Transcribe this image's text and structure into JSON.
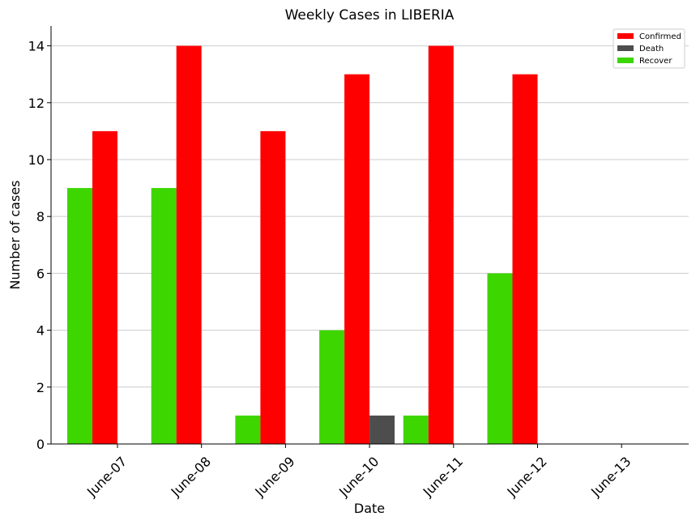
{
  "chart_data": {
    "type": "bar",
    "title": "Weekly Cases in LIBERIA",
    "xlabel": "Date",
    "ylabel": "Number of cases",
    "categories": [
      "June-07",
      "June-08",
      "June-09",
      "June-10",
      "June-11",
      "June-12",
      "June-13"
    ],
    "series": [
      {
        "name": "Recover",
        "color": "#3dd600",
        "values": [
          9,
          9,
          1,
          4,
          1,
          6,
          0
        ]
      },
      {
        "name": "Confirmed",
        "color": "#ff0000",
        "values": [
          11,
          14,
          11,
          13,
          14,
          13,
          0
        ]
      },
      {
        "name": "Death",
        "color": "#4d4d4d",
        "values": [
          0,
          0,
          0,
          1,
          0,
          0,
          0
        ]
      }
    ],
    "legend_order": [
      "Confirmed",
      "Death",
      "Recover"
    ],
    "legend_position": "top-right",
    "yticks": [
      0,
      2,
      4,
      6,
      8,
      10,
      12,
      14
    ],
    "ylim": [
      0,
      14.7
    ],
    "grid": "horizontal"
  }
}
